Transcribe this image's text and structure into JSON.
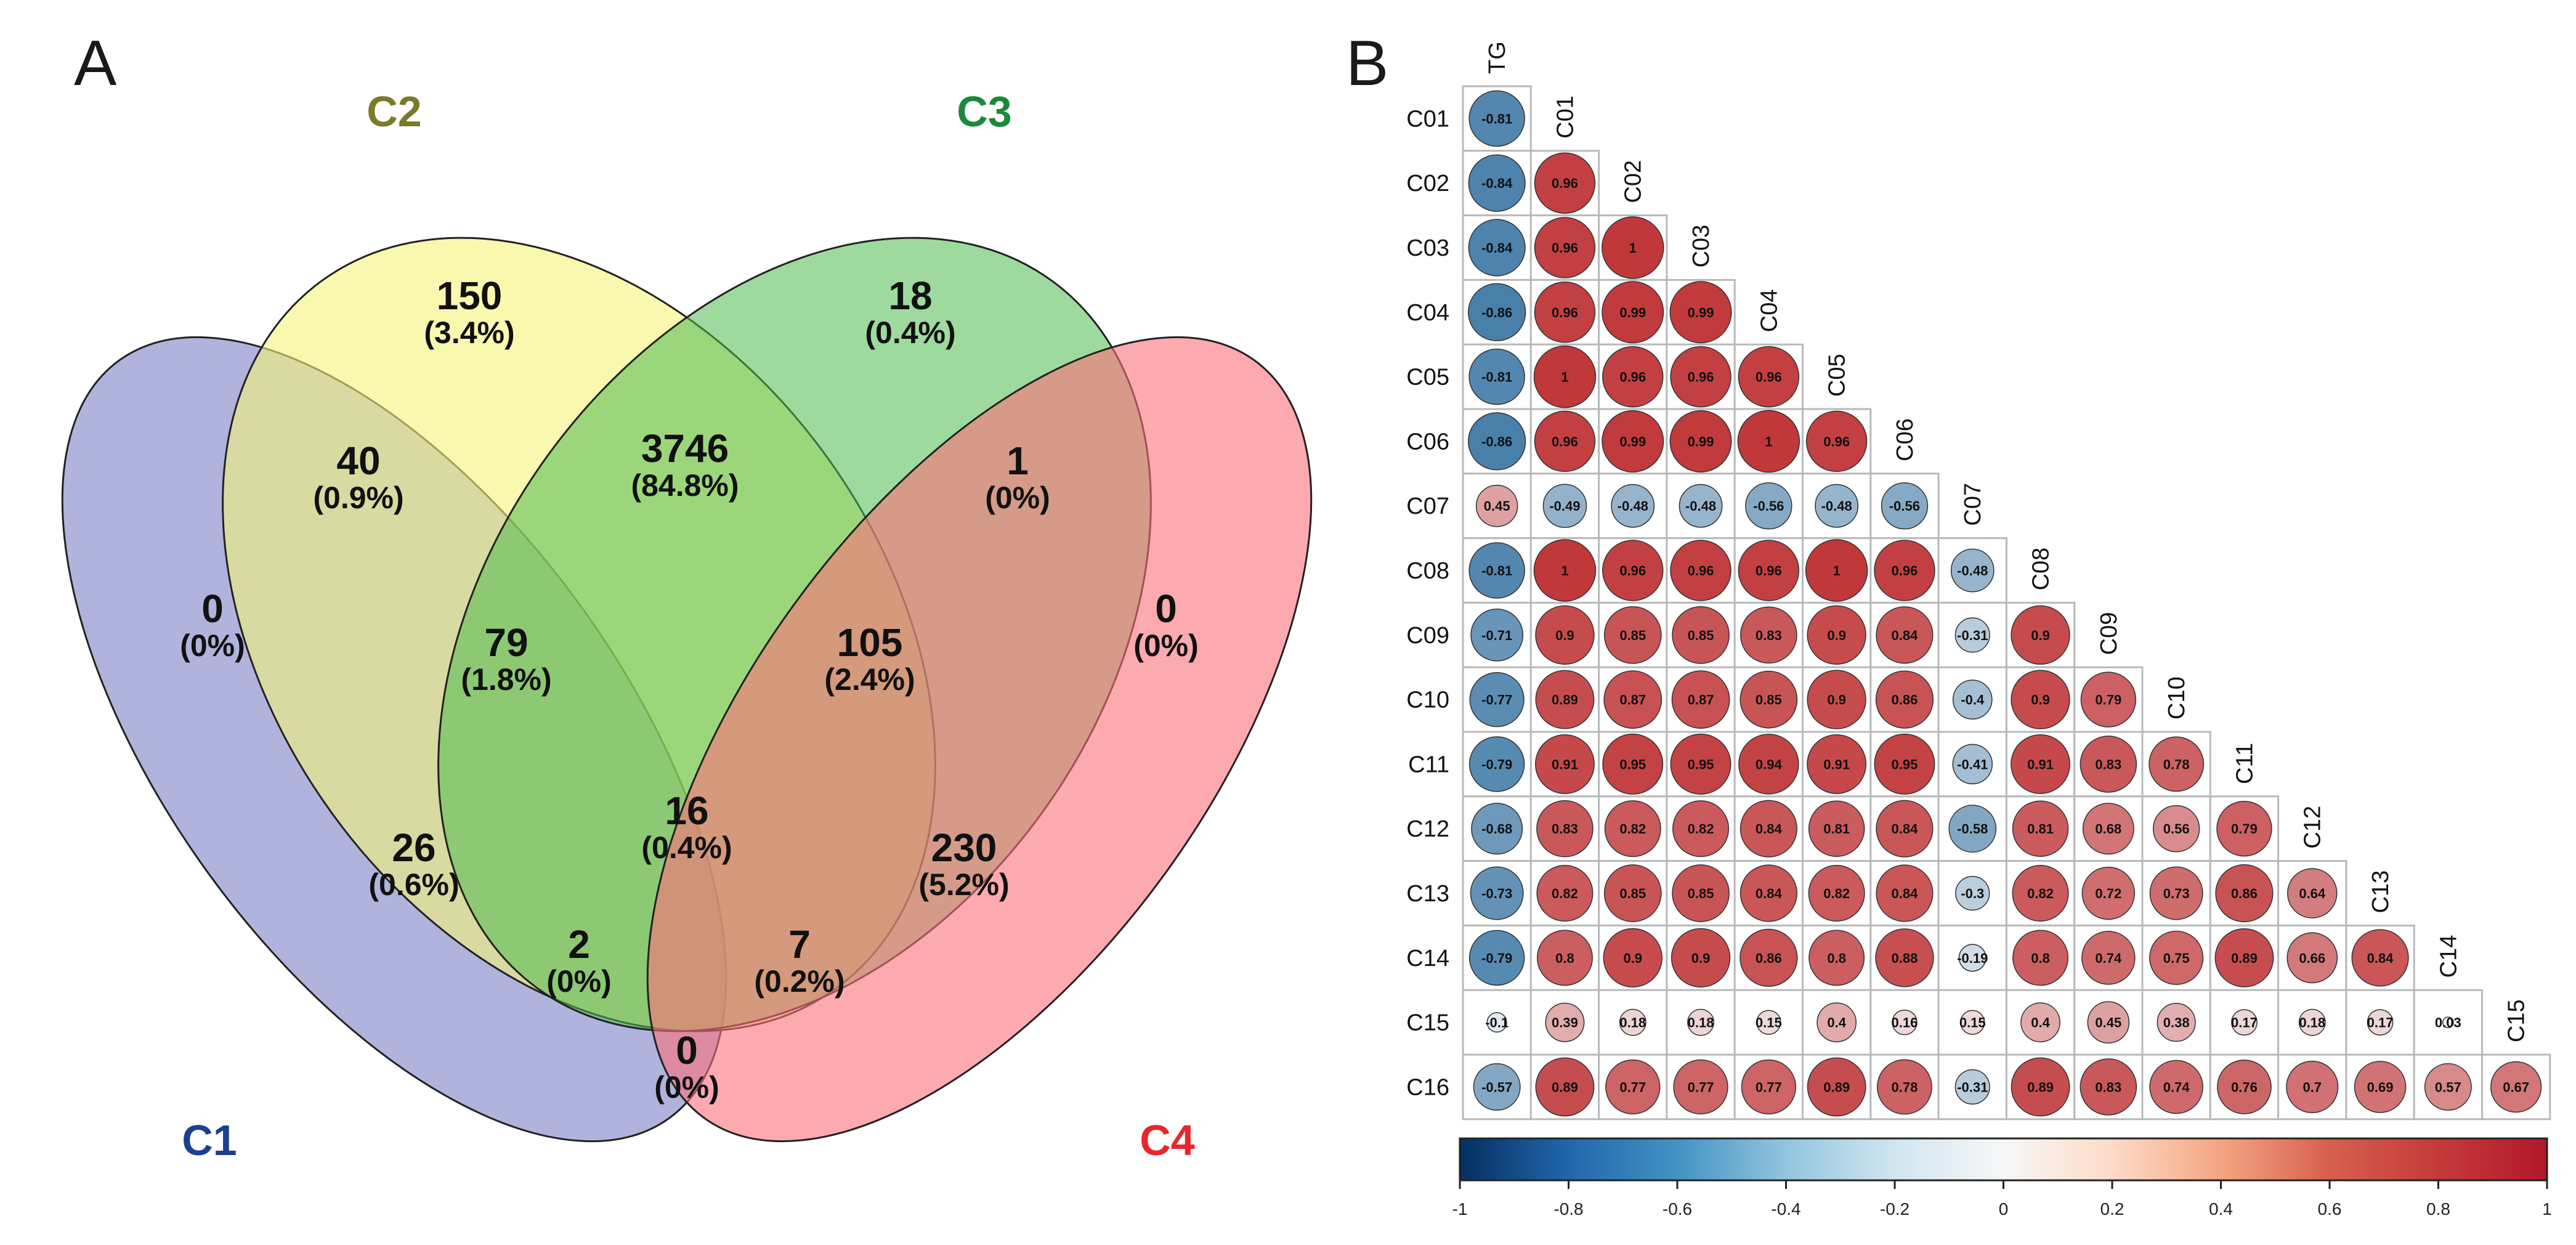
{
  "panels": {
    "a_label": "A",
    "b_label": "B"
  },
  "colors": {
    "c1": "#7b80c4",
    "c2": "#f5f47a",
    "c3": "#5cc15c",
    "c4": "#fb6f7c",
    "c1_label": "#1d3f8f",
    "c2_label": "#7a7a2a",
    "c3_label": "#1a8a3a",
    "c4_label": "#e8262b",
    "neg": "#2d6d9e",
    "mid": "#f7f7f7",
    "pos": "#c0383a"
  },
  "chart_data": [
    {
      "type": "venn",
      "sets": [
        "C1",
        "C2",
        "C3",
        "C4"
      ],
      "regions": [
        {
          "sets": [
            "C2"
          ],
          "count": "150",
          "percent": "(3.4%)"
        },
        {
          "sets": [
            "C3"
          ],
          "count": "18",
          "percent": "(0.4%)"
        },
        {
          "sets": [
            "C1",
            "C2"
          ],
          "count": "40",
          "percent": "(0.9%)"
        },
        {
          "sets": [
            "C2",
            "C3"
          ],
          "count": "3746",
          "percent": "(84.8%)"
        },
        {
          "sets": [
            "C3",
            "C4"
          ],
          "count": "1",
          "percent": "(0%)"
        },
        {
          "sets": [
            "C1"
          ],
          "count": "0",
          "percent": "(0%)"
        },
        {
          "sets": [
            "C1",
            "C2",
            "C3"
          ],
          "count": "79",
          "percent": "(1.8%)"
        },
        {
          "sets": [
            "C2",
            "C3",
            "C4"
          ],
          "count": "105",
          "percent": "(2.4%)"
        },
        {
          "sets": [
            "C4"
          ],
          "count": "0",
          "percent": "(0%)"
        },
        {
          "sets": [
            "C1",
            "C2",
            "C3",
            "C4"
          ],
          "count": "16",
          "percent": "(0.4%)"
        },
        {
          "sets": [
            "C1",
            "C3"
          ],
          "count": "26",
          "percent": "(0.6%)"
        },
        {
          "sets": [
            "C2",
            "C4"
          ],
          "count": "230",
          "percent": "(5.2%)"
        },
        {
          "sets": [
            "C1",
            "C3",
            "C4"
          ],
          "count": "2",
          "percent": "(0%)"
        },
        {
          "sets": [
            "C1",
            "C2",
            "C4"
          ],
          "count": "7",
          "percent": "(0.2%)"
        },
        {
          "sets": [
            "C1",
            "C4"
          ],
          "count": "0",
          "percent": "(0%)"
        }
      ]
    },
    {
      "type": "heatmap",
      "variables": [
        "TG",
        "C01",
        "C02",
        "C03",
        "C04",
        "C05",
        "C06",
        "C07",
        "C08",
        "C09",
        "C10",
        "C11",
        "C12",
        "C13",
        "C14",
        "C15",
        "C16"
      ],
      "rows": [
        "C01",
        "C02",
        "C03",
        "C04",
        "C05",
        "C06",
        "C07",
        "C08",
        "C09",
        "C10",
        "C11",
        "C12",
        "C13",
        "C14",
        "C15",
        "C16"
      ],
      "columns": [
        "TG",
        "C01",
        "C02",
        "C03",
        "C04",
        "C05",
        "C06",
        "C07",
        "C08",
        "C09",
        "C10",
        "C11",
        "C12",
        "C13",
        "C14",
        "C15"
      ],
      "values": [
        [
          -0.81
        ],
        [
          -0.84,
          0.96
        ],
        [
          -0.84,
          0.96,
          1
        ],
        [
          -0.86,
          0.96,
          0.99,
          0.99
        ],
        [
          -0.81,
          1,
          0.96,
          0.96,
          0.96
        ],
        [
          -0.86,
          0.96,
          0.99,
          0.99,
          1,
          0.96
        ],
        [
          0.45,
          -0.49,
          -0.48,
          -0.48,
          -0.56,
          -0.48,
          -0.56
        ],
        [
          -0.81,
          1,
          0.96,
          0.96,
          0.96,
          1,
          0.96,
          -0.48
        ],
        [
          -0.71,
          0.9,
          0.85,
          0.85,
          0.83,
          0.9,
          0.84,
          -0.31,
          0.9
        ],
        [
          -0.77,
          0.89,
          0.87,
          0.87,
          0.85,
          0.9,
          0.86,
          -0.4,
          0.9,
          0.79
        ],
        [
          -0.79,
          0.91,
          0.95,
          0.95,
          0.94,
          0.91,
          0.95,
          -0.41,
          0.91,
          0.83,
          0.78
        ],
        [
          -0.68,
          0.83,
          0.82,
          0.82,
          0.84,
          0.81,
          0.84,
          -0.58,
          0.81,
          0.68,
          0.56,
          0.79
        ],
        [
          -0.73,
          0.82,
          0.85,
          0.85,
          0.84,
          0.82,
          0.84,
          -0.3,
          0.82,
          0.72,
          0.73,
          0.86,
          0.64
        ],
        [
          -0.79,
          0.8,
          0.9,
          0.9,
          0.86,
          0.8,
          0.88,
          -0.19,
          0.8,
          0.74,
          0.75,
          0.89,
          0.66,
          0.84
        ],
        [
          -0.1,
          0.39,
          0.18,
          0.18,
          0.15,
          0.4,
          0.16,
          0.15,
          0.4,
          0.45,
          0.38,
          0.17,
          0.18,
          0.17,
          0.03
        ],
        [
          -0.57,
          0.89,
          0.77,
          0.77,
          0.77,
          0.89,
          0.78,
          -0.31,
          0.89,
          0.83,
          0.74,
          0.76,
          0.7,
          0.69,
          0.57,
          0.67
        ]
      ],
      "colorbar": {
        "min": -1,
        "max": 1,
        "ticks": [
          "-1",
          "-0.8",
          "-0.6",
          "-0.4",
          "-0.2",
          "0",
          "0.2",
          "0.4",
          "0.6",
          "0.8",
          "1"
        ]
      }
    }
  ]
}
